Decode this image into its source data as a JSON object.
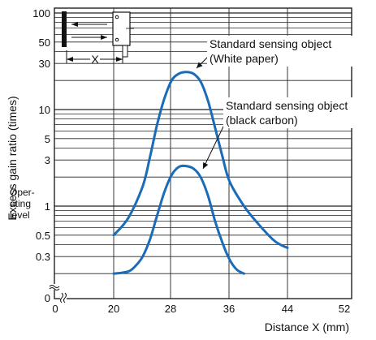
{
  "chart_data": {
    "type": "line",
    "title": "",
    "xlabel": "Distance X (mm)",
    "ylabel": "Excess gain ratio (times)",
    "y_scale": "log",
    "x_ticks": [
      "0",
      "20",
      "28",
      "36",
      "44",
      "52"
    ],
    "y_ticks": [
      "100",
      "50",
      "30",
      "10",
      "5",
      "3",
      "1",
      "0.5",
      "0.3",
      "0"
    ],
    "operating_level_label": [
      "Oper-",
      "ating",
      "level"
    ],
    "operating_level_value": 1,
    "diagram_x_label": "X",
    "grid": true,
    "series": [
      {
        "name": "Standard sensing object (White paper)",
        "label_lines": [
          "Standard sensing object",
          "(White paper)"
        ],
        "color": "#1a6bb8",
        "points": [
          [
            20,
            0.5
          ],
          [
            22,
            0.75
          ],
          [
            24,
            1.6
          ],
          [
            25,
            3.2
          ],
          [
            26,
            7
          ],
          [
            27,
            13
          ],
          [
            28,
            20
          ],
          [
            29,
            23.5
          ],
          [
            30,
            24.5
          ],
          [
            31,
            23.5
          ],
          [
            32,
            19.5
          ],
          [
            33,
            12.5
          ],
          [
            34,
            6.5
          ],
          [
            35,
            3.3
          ],
          [
            36,
            1.8
          ],
          [
            38,
            1.0
          ],
          [
            40,
            0.65
          ],
          [
            42,
            0.45
          ],
          [
            43,
            0.4
          ],
          [
            44,
            0.37
          ]
        ]
      },
      {
        "name": "Standard sensing object (black carbon)",
        "label_lines": [
          "Standard sensing object",
          "(black carbon)"
        ],
        "color": "#1a6bb8",
        "points": [
          [
            20,
            0.2
          ],
          [
            22,
            0.21
          ],
          [
            23,
            0.24
          ],
          [
            24,
            0.3
          ],
          [
            25,
            0.45
          ],
          [
            26,
            0.8
          ],
          [
            27,
            1.4
          ],
          [
            28,
            2.1
          ],
          [
            29,
            2.55
          ],
          [
            30,
            2.6
          ],
          [
            31,
            2.45
          ],
          [
            32,
            2.0
          ],
          [
            33,
            1.3
          ],
          [
            34,
            0.7
          ],
          [
            35,
            0.42
          ],
          [
            36,
            0.28
          ],
          [
            37,
            0.22
          ],
          [
            38,
            0.2
          ]
        ]
      }
    ]
  }
}
